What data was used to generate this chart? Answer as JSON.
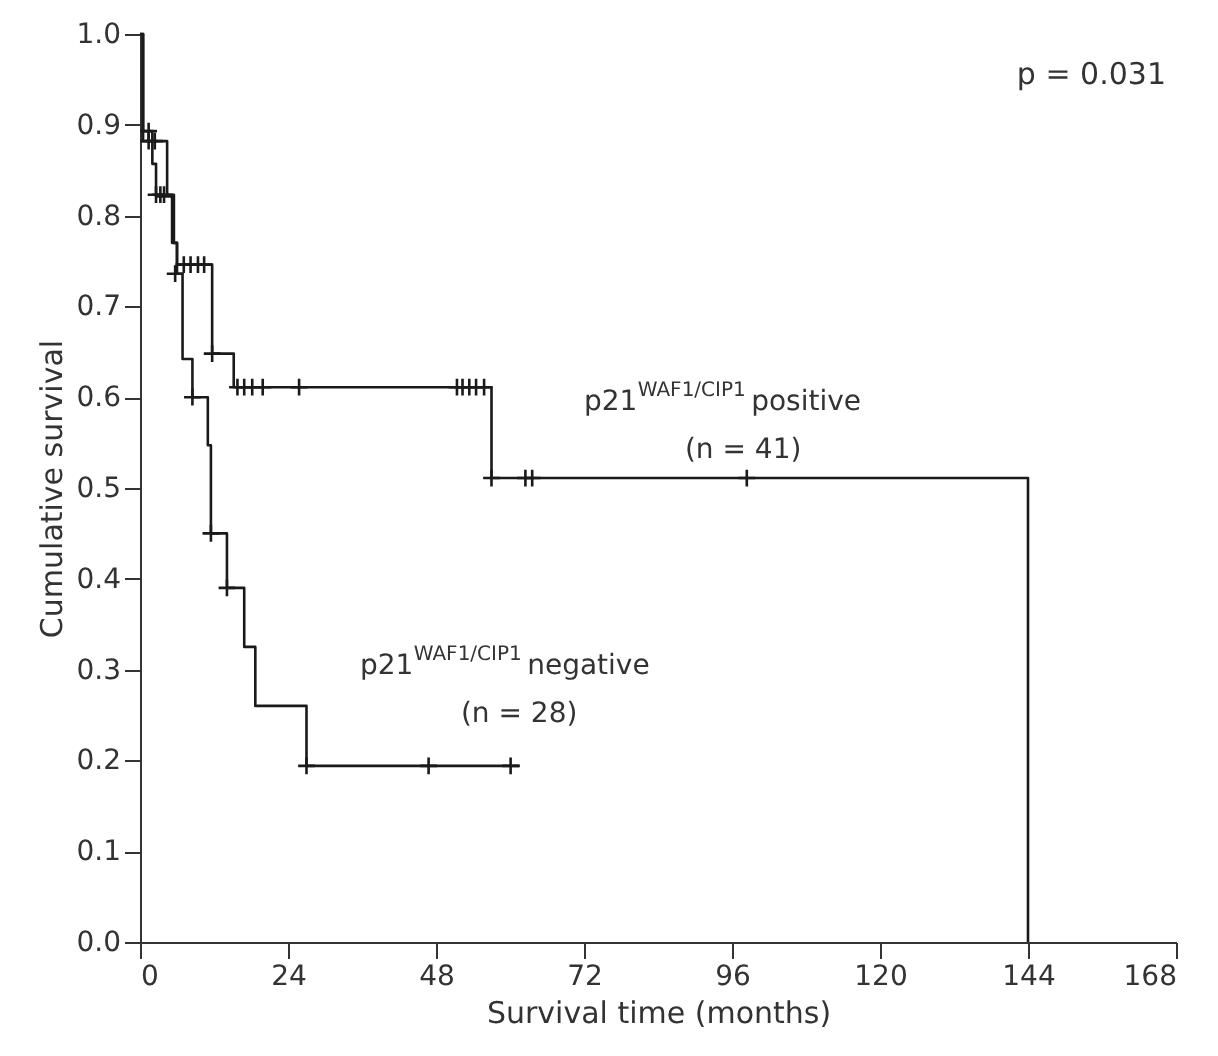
{
  "chart_data": {
    "type": "step",
    "xlabel": "Survival time (months)",
    "ylabel": "Cumulative survival",
    "xlim": [
      0,
      168
    ],
    "xticks": [
      0,
      24,
      48,
      72,
      96,
      120,
      144,
      168
    ],
    "ylim": [
      0,
      1
    ],
    "yticks": [
      {
        "value": 0,
        "label": "0.0"
      },
      0.1,
      0.2,
      0.3,
      0.4,
      0.5,
      0.6,
      0.7,
      0.8,
      0.9,
      {
        "value": 1,
        "label": "1.0"
      }
    ],
    "line_style": "solid",
    "annotations": [
      "p = 0.031"
    ],
    "series": [
      {
        "name": "p21$^{WAF1/CIP1}$ positive (n = 41)",
        "color": "#1a1a1a",
        "x": [
          0,
          0.5,
          4.4,
          5.5,
          6.0,
          11.7,
          15.2,
          57.0,
          144
        ],
        "values": [
          1.0,
          0.882,
          0.823,
          0.77,
          0.746,
          0.648,
          0.611,
          0.511,
          0.0
        ]
      },
      {
        "name": "p21$^{WAF1/CIP1}$ negative (n = 28)",
        "color": "#1a1a1a",
        "x": [
          0,
          0.5,
          2.0,
          2.6,
          5.2,
          6.0,
          6.9,
          8.5,
          11.0,
          11.5,
          14.1,
          16.9,
          18.7,
          27.0,
          61.6
        ],
        "values": [
          1.0,
          0.893,
          0.857,
          0.821,
          0.77,
          0.736,
          0.642,
          0.6,
          0.547,
          0.45,
          0.39,
          0.325,
          0.26,
          0.194,
          0.194
        ]
      },
      {
        "type": "scatter",
        "marker": "cross",
        "color": "#1a1a1a",
        "x": [
          1.4,
          2.4,
          2.6,
          3.3,
          3.9,
          7.1,
          8.2,
          9.4,
          10.4,
          11.7,
          15.8,
          16.9,
          18.2,
          19.9,
          25.8,
          51.4,
          52.3,
          53.4,
          54.5,
          55.8,
          57.0,
          62.5,
          63.6,
          98.4
        ],
        "values": [
          0.882,
          0.882,
          0.823,
          0.823,
          0.823,
          0.746,
          0.746,
          0.746,
          0.746,
          0.648,
          0.611,
          0.611,
          0.611,
          0.611,
          0.611,
          0.611,
          0.611,
          0.611,
          0.611,
          0.611,
          0.511,
          0.511,
          0.511,
          0.511
        ]
      },
      {
        "type": "scatter",
        "marker": "cross",
        "color": "#1a1a1a",
        "x": [
          1.4,
          5.7,
          8.5,
          11.5,
          14.1,
          27.0,
          46.8,
          60.1
        ],
        "values": [
          0.893,
          0.736,
          0.6,
          0.45,
          0.39,
          0.194,
          0.194,
          0.194
        ]
      }
    ]
  }
}
